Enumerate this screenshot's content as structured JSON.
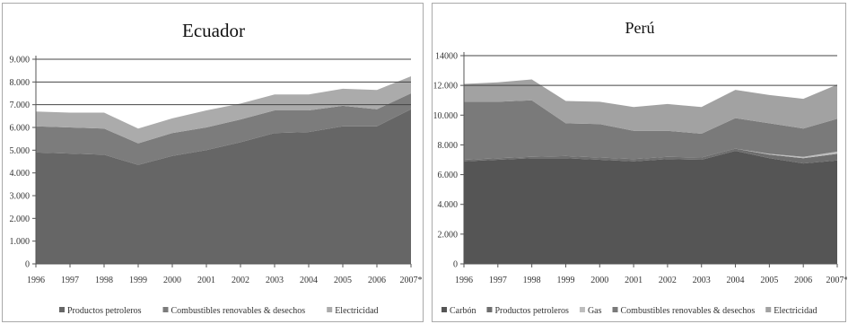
{
  "chart_data": [
    {
      "type": "area",
      "stacked": true,
      "title": "Ecuador",
      "xlabel": "",
      "ylabel": "",
      "x": [
        "1996",
        "1997",
        "1998",
        "1999",
        "2000",
        "2001",
        "2002",
        "2003",
        "2004",
        "2005",
        "2006",
        "2007*"
      ],
      "ylim": [
        0,
        9000
      ],
      "yticks": [
        "0",
        "1.000",
        "2.000",
        "3.000",
        "4.000",
        "5.000",
        "6.000",
        "7.000",
        "8.000",
        "9.000"
      ],
      "legend_position": "bottom",
      "series": [
        {
          "name": "Productos petroleros",
          "color": "#666666",
          "values": [
            4900,
            4850,
            4800,
            4350,
            4750,
            5000,
            5350,
            5750,
            5800,
            6050,
            6050,
            6800
          ]
        },
        {
          "name": "Combustibles renovables & desechos",
          "color": "#7c7c7c",
          "values": [
            1150,
            1150,
            1150,
            950,
            1000,
            1000,
            1000,
            1000,
            950,
            900,
            750,
            700
          ]
        },
        {
          "name": "Electricidad",
          "color": "#ababab",
          "values": [
            650,
            650,
            700,
            650,
            650,
            750,
            700,
            700,
            700,
            750,
            850,
            750
          ]
        }
      ]
    },
    {
      "type": "area",
      "stacked": true,
      "title": "Perú",
      "xlabel": "",
      "ylabel": "",
      "x": [
        "1996",
        "1997",
        "1998",
        "1999",
        "2000",
        "2001",
        "2002",
        "2003",
        "2004",
        "2005",
        "2006",
        "2007*"
      ],
      "ylim": [
        0,
        14000
      ],
      "yticks": [
        "0",
        "2.000",
        "4.000",
        "6.000",
        "8.000",
        "10.000",
        "12.000",
        "14000"
      ],
      "legend_position": "bottom",
      "series": [
        {
          "name": "Carbón",
          "color": "#555555",
          "values": [
            6900,
            7000,
            7100,
            7100,
            7000,
            6900,
            7050,
            7000,
            7600,
            7100,
            6750,
            6950
          ]
        },
        {
          "name": "Productos petroleros",
          "color": "#6e6e6e",
          "values": [
            100,
            100,
            100,
            150,
            150,
            150,
            150,
            150,
            150,
            250,
            350,
            450
          ]
        },
        {
          "name": "Gas",
          "color": "#bdbdbd",
          "values": [
            0,
            0,
            0,
            0,
            0,
            0,
            0,
            0,
            0,
            50,
            100,
            150
          ]
        },
        {
          "name": "Combustibles renovables & desechos",
          "color": "#7a7a7a",
          "values": [
            3900,
            3800,
            3800,
            2200,
            2250,
            1900,
            1750,
            1600,
            2050,
            2050,
            1900,
            2200
          ]
        },
        {
          "name": "Electricidad",
          "color": "#a2a2a2",
          "values": [
            1200,
            1300,
            1400,
            1500,
            1500,
            1600,
            1800,
            1800,
            1900,
            1900,
            2000,
            2300
          ]
        }
      ]
    }
  ]
}
